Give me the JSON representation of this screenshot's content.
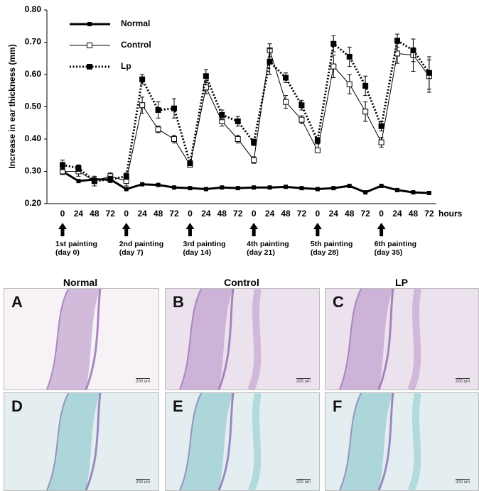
{
  "chart_data": {
    "type": "line",
    "ylabel": "Increase in ear thickness (mm)",
    "xlabel": "hours",
    "categories": [
      "0",
      "24",
      "48",
      "72",
      "0",
      "24",
      "48",
      "72",
      "0",
      "24",
      "48",
      "72",
      "0",
      "24",
      "48",
      "72",
      "0",
      "24",
      "48",
      "72",
      "0",
      "24",
      "48",
      "72"
    ],
    "ylim": [
      0.2,
      0.8
    ],
    "yticks": [
      {
        "value": 0.2,
        "label": "0.20"
      },
      {
        "value": 0.3,
        "label": "0.30"
      },
      {
        "value": 0.4,
        "label": "0.40"
      },
      {
        "value": 0.5,
        "label": "0.50"
      },
      {
        "value": 0.6,
        "label": "0.60"
      },
      {
        "value": 0.7,
        "label": "0.70"
      },
      {
        "value": 0.8,
        "label": "0.80"
      }
    ],
    "series": [
      {
        "name": "Normal",
        "color": "#000000",
        "line_style": "solid-thick",
        "marker": "filled",
        "values": [
          0.3,
          0.27,
          0.275,
          0.275,
          0.245,
          0.26,
          0.258,
          0.25,
          0.248,
          0.245,
          0.25,
          0.248,
          0.25,
          0.25,
          0.252,
          0.248,
          0.245,
          0.248,
          0.255,
          0.235,
          0.255,
          0.242,
          0.235,
          0.233
        ]
      },
      {
        "name": "Control",
        "color": "#000000",
        "line_style": "solid-thin",
        "marker": "open",
        "values": [
          0.3,
          0.3,
          0.27,
          0.285,
          0.27,
          0.505,
          0.43,
          0.4,
          0.32,
          0.56,
          0.455,
          0.4,
          0.335,
          0.675,
          0.515,
          0.46,
          0.365,
          0.625,
          0.57,
          0.485,
          0.39,
          0.665,
          0.66,
          0.595
        ],
        "errors": [
          0.01,
          0.015,
          0.015,
          0.01,
          0.015,
          0.025,
          0.01,
          0.012,
          0.005,
          0.02,
          0.015,
          0.012,
          0.01,
          0.02,
          0.02,
          0.012,
          0.005,
          0.035,
          0.03,
          0.03,
          0.015,
          0.03,
          0.05,
          0.05
        ]
      },
      {
        "name": "Lp",
        "color": "#000000",
        "line_style": "dotted",
        "marker": "filled",
        "values": [
          0.32,
          0.31,
          0.27,
          0.275,
          0.285,
          0.585,
          0.49,
          0.495,
          0.325,
          0.595,
          0.475,
          0.455,
          0.39,
          0.64,
          0.59,
          0.505,
          0.395,
          0.695,
          0.655,
          0.565,
          0.44,
          0.705,
          0.675,
          0.605
        ],
        "errors": [
          0.015,
          0.01,
          0.015,
          0.01,
          0.01,
          0.015,
          0.025,
          0.03,
          0.005,
          0.02,
          0.015,
          0.015,
          0.01,
          0.04,
          0.015,
          0.015,
          0.01,
          0.025,
          0.03,
          0.03,
          0.015,
          0.02,
          0.035,
          0.05
        ]
      }
    ],
    "annotations": [
      {
        "lines": [
          "1st painting",
          "(day 0)"
        ]
      },
      {
        "lines": [
          "2nd painting",
          "(day 7)"
        ]
      },
      {
        "lines": [
          "3rd painting",
          "(day 14)"
        ]
      },
      {
        "lines": [
          "4th painting",
          "(day 21)"
        ]
      },
      {
        "lines": [
          "5th painting",
          "(day 28)"
        ]
      },
      {
        "lines": [
          "6th painting",
          "(day 35)"
        ]
      }
    ]
  },
  "panels": {
    "columns": [
      "Normal",
      "Control",
      "LP"
    ],
    "images": [
      {
        "letter": "A",
        "scale": "200 um"
      },
      {
        "letter": "B",
        "scale": "200 um"
      },
      {
        "letter": "C",
        "scale": "200 um"
      },
      {
        "letter": "D",
        "scale": "200 um"
      },
      {
        "letter": "E",
        "scale": "200 um"
      },
      {
        "letter": "F",
        "scale": "200 um"
      }
    ]
  }
}
